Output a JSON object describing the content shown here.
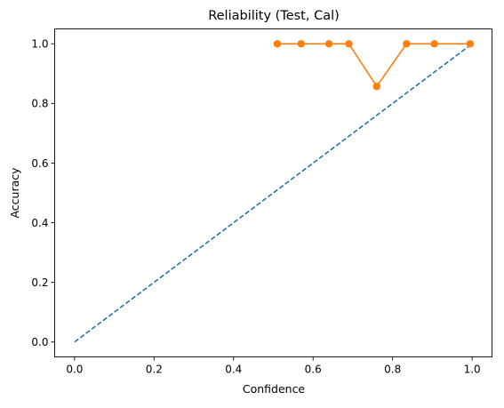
{
  "chart_data": {
    "type": "line",
    "title": "Reliability (Test, Cal)",
    "xlabel": "Confidence",
    "ylabel": "Accuracy",
    "xlim": [
      -0.05,
      1.05
    ],
    "ylim": [
      -0.05,
      1.05
    ],
    "xticks": [
      0.0,
      0.2,
      0.4,
      0.6,
      0.8,
      1.0
    ],
    "yticks": [
      0.0,
      0.2,
      0.4,
      0.6,
      0.8,
      1.0
    ],
    "xtick_labels": [
      "0.0",
      "0.2",
      "0.4",
      "0.6",
      "0.8",
      "1.0"
    ],
    "ytick_labels": [
      "0.0",
      "0.2",
      "0.4",
      "0.6",
      "0.8",
      "1.0"
    ],
    "grid": false,
    "series": [
      {
        "style": "dashed",
        "color": "#1f77b4",
        "x": [
          0.0,
          1.0
        ],
        "y": [
          0.0,
          1.0
        ]
      },
      {
        "style": "line-markers",
        "color": "#ff7f0e",
        "x": [
          0.51,
          0.57,
          0.64,
          0.69,
          0.76,
          0.835,
          0.905,
          0.995
        ],
        "y": [
          1.0,
          1.0,
          1.0,
          1.0,
          0.857,
          1.0,
          1.0,
          1.0
        ]
      }
    ]
  }
}
